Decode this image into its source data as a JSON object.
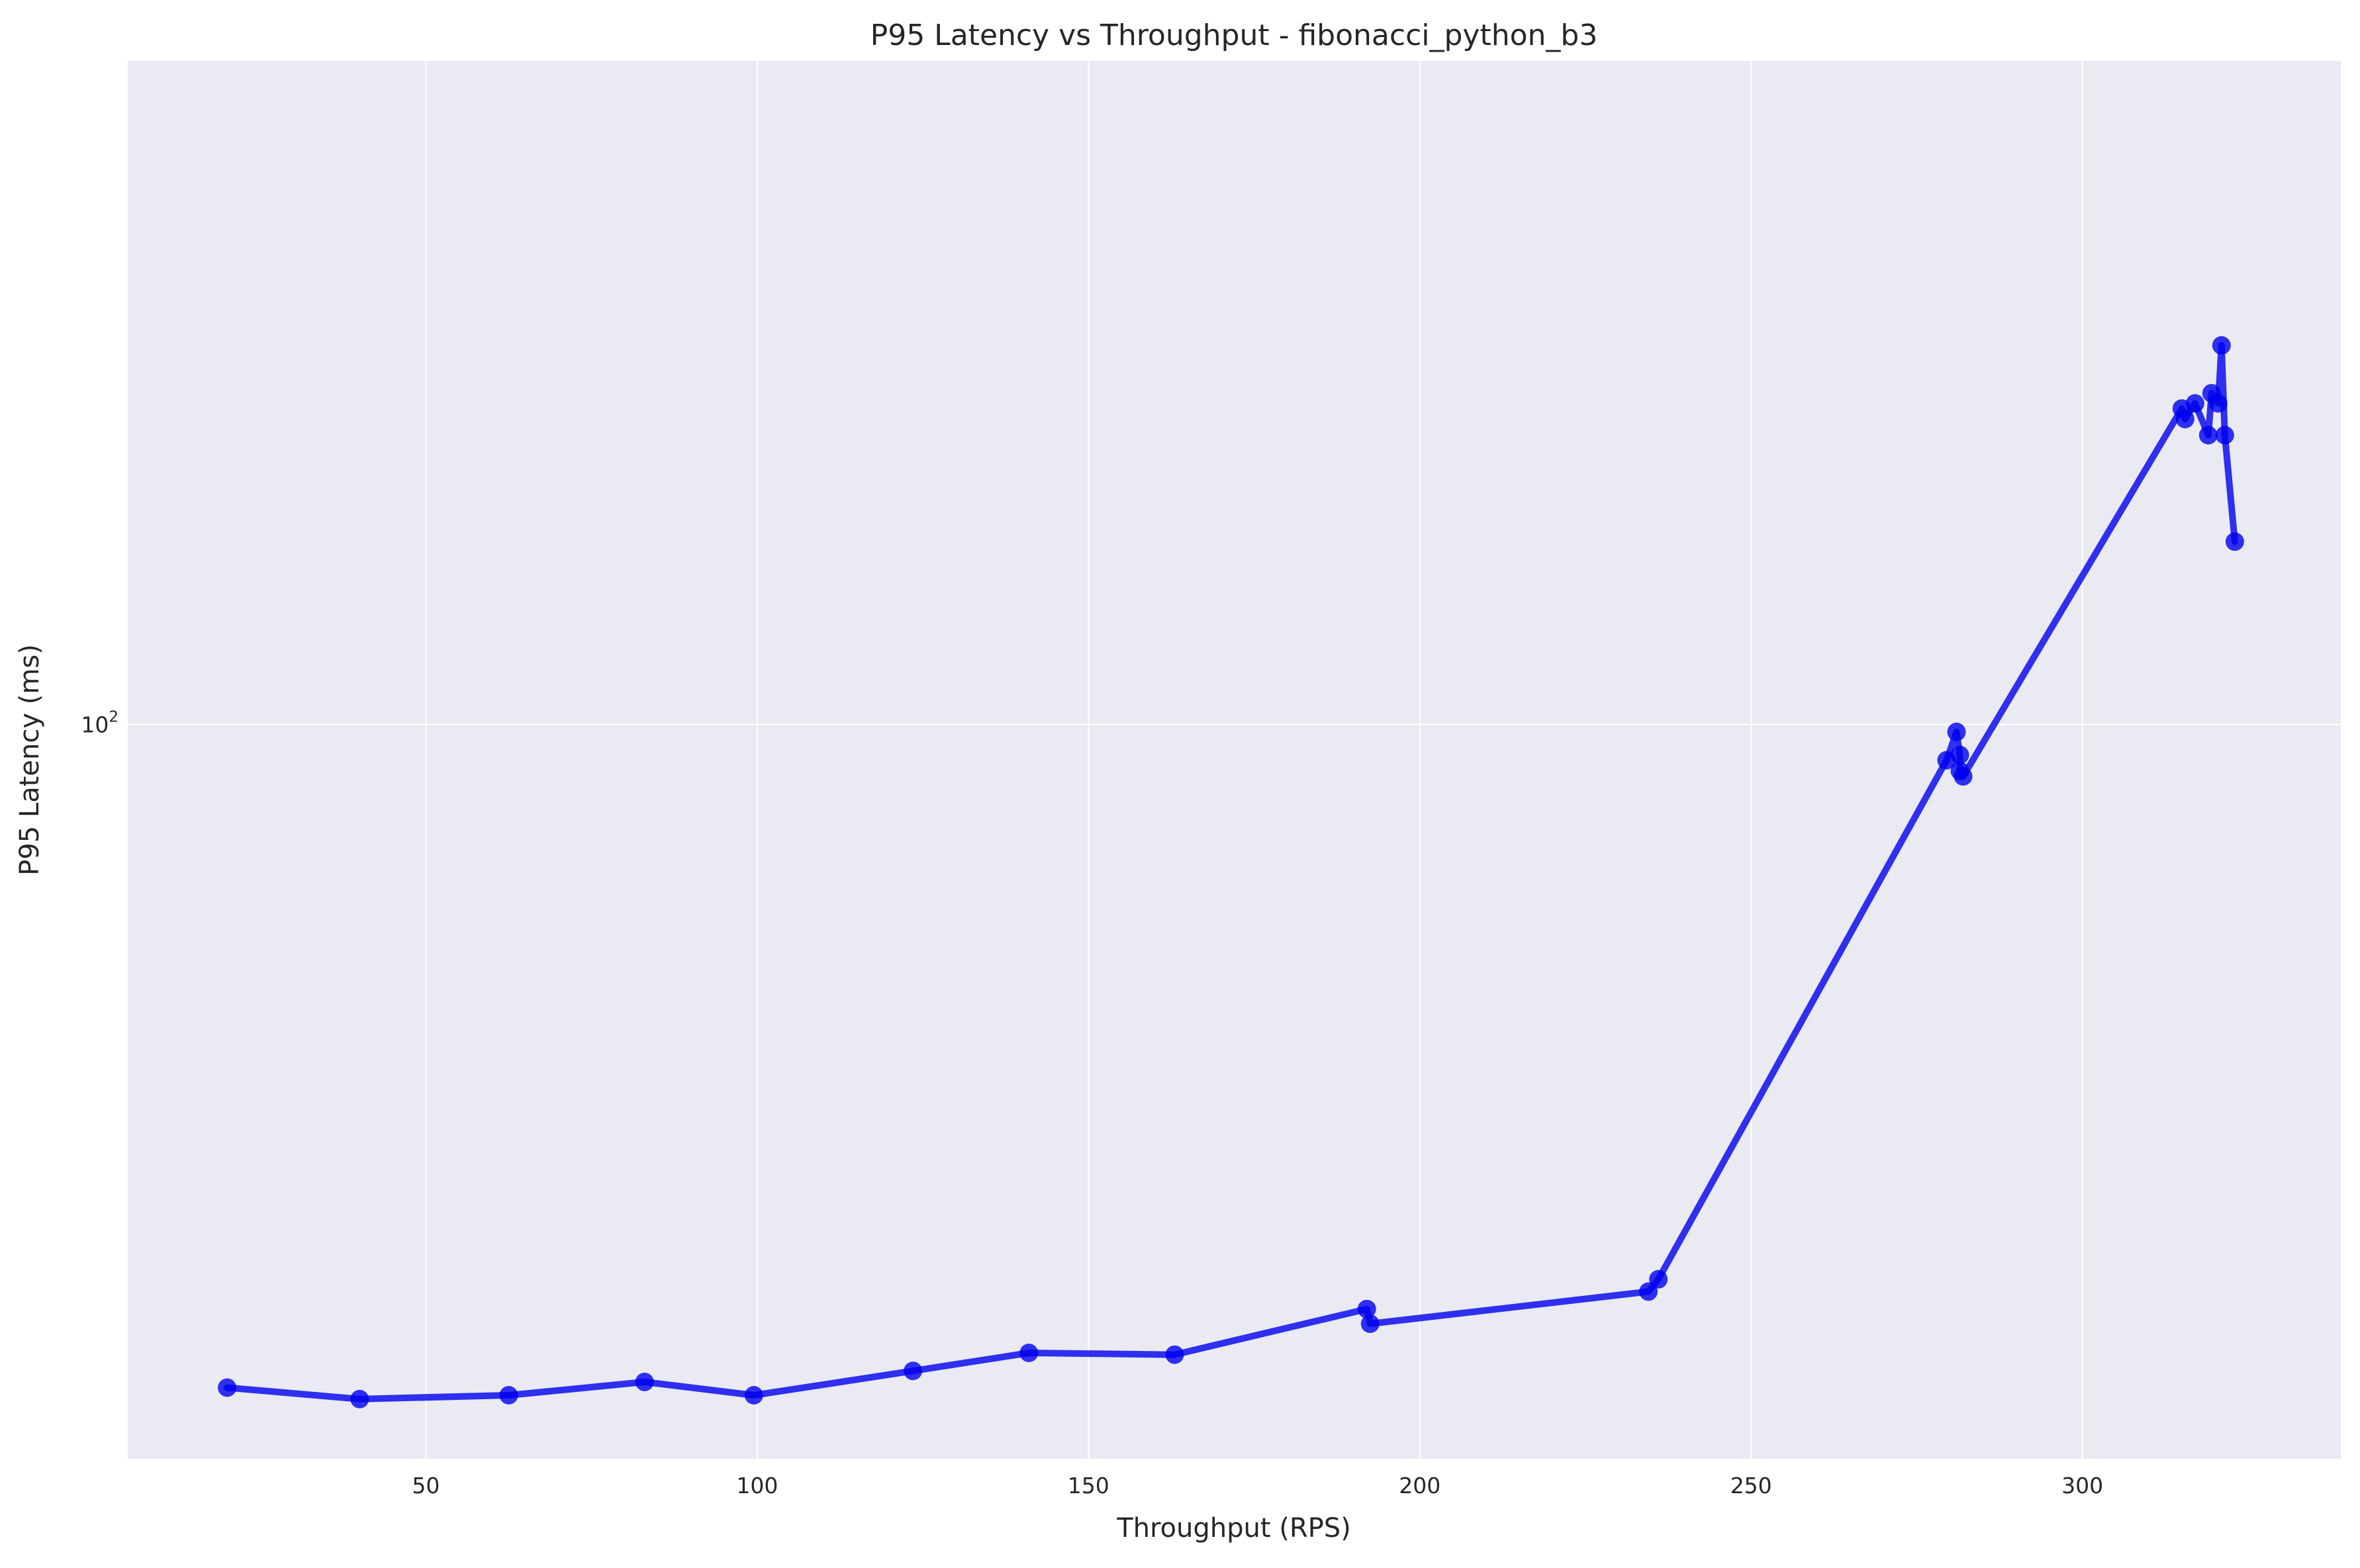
{
  "chart_data": {
    "type": "line",
    "title": "P95 Latency vs Throughput - fibonacci_python_b3",
    "xlabel": "Throughput (RPS)",
    "ylabel": "P95 Latency (ms)",
    "yscale": "log",
    "xlim": [
      5,
      339
    ],
    "ylim": [
      22.5,
      385
    ],
    "x_ticks": [
      50,
      100,
      150,
      200,
      250,
      300
    ],
    "x_tick_labels": [
      "50",
      "100",
      "150",
      "200",
      "250",
      "300"
    ],
    "y_ticks": [
      100
    ],
    "y_tick_labels": [
      "10",
      "2"
    ],
    "grid": true,
    "legend": false,
    "background_color": "#eaeaf2",
    "grid_color": "#ffffff",
    "series": [
      {
        "color": "#0000ee",
        "marker": "circle",
        "points": [
          [
            20,
            26.0
          ],
          [
            40,
            25.4
          ],
          [
            62.5,
            25.6
          ],
          [
            83,
            26.3
          ],
          [
            99.5,
            25.6
          ],
          [
            123.5,
            26.9
          ],
          [
            141,
            27.9
          ],
          [
            163,
            27.8
          ],
          [
            192,
            30.5
          ],
          [
            192.5,
            29.6
          ],
          [
            234.5,
            31.6
          ],
          [
            236,
            32.4
          ],
          [
            279.5,
            93.0
          ],
          [
            281,
            98.5
          ],
          [
            281.5,
            94.0
          ],
          [
            281.5,
            91.0
          ],
          [
            282,
            90.0
          ],
          [
            315,
            190.0
          ],
          [
            315.5,
            186.0
          ],
          [
            317,
            192.0
          ],
          [
            319,
            180.0
          ],
          [
            319.5,
            196.0
          ],
          [
            320.5,
            192.0
          ],
          [
            321,
            216.0
          ],
          [
            321.5,
            180.0
          ],
          [
            323,
            145.0
          ]
        ]
      }
    ]
  }
}
